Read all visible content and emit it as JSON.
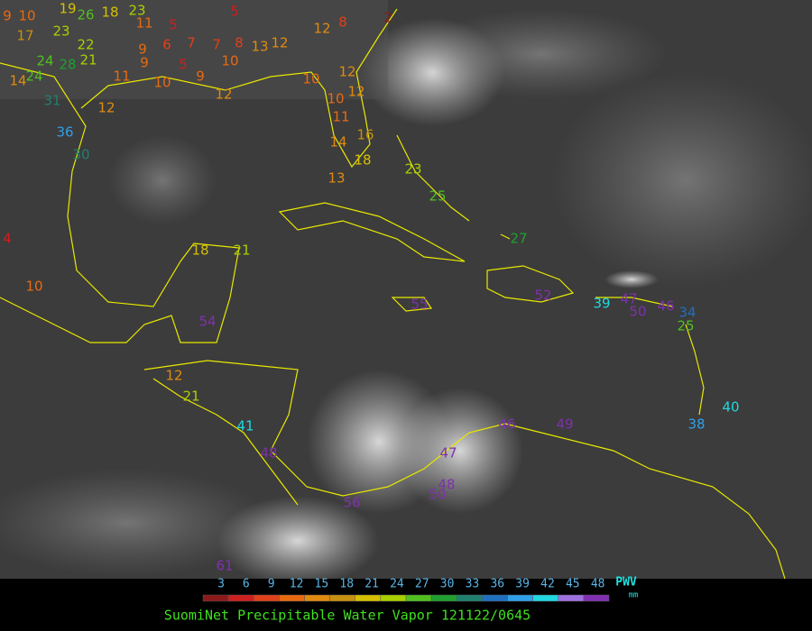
{
  "map": {
    "station_values": [
      9,
      10,
      19,
      26,
      18,
      23,
      5,
      5,
      17,
      23,
      11,
      9,
      6,
      7,
      7,
      8,
      13,
      12,
      12,
      8,
      2,
      22,
      24,
      21,
      28,
      9,
      5,
      9,
      10,
      11,
      10,
      12,
      14,
      24,
      31,
      12,
      36,
      30,
      12,
      10,
      10,
      12,
      11,
      14,
      16,
      18,
      13,
      4,
      10,
      18,
      21,
      23,
      25,
      27,
      55,
      52,
      39,
      47,
      50,
      46,
      34,
      25,
      54,
      12,
      21,
      41,
      48,
      56,
      47,
      48,
      50,
      46,
      49,
      38,
      40,
      61
    ],
    "legend": {
      "ticks": [
        3,
        6,
        9,
        12,
        15,
        18,
        21,
        24,
        27,
        30,
        33,
        36,
        39,
        42,
        45,
        48
      ],
      "colors": [
        "#8b1a1a",
        "#cc1f1f",
        "#e0401a",
        "#e86a10",
        "#e08a10",
        "#c89010",
        "#d4c000",
        "#a8d000",
        "#50c020",
        "#20a030",
        "#208070",
        "#2070c0",
        "#30a0e8",
        "#20d8e0",
        "#a070e0",
        "#8030b0"
      ],
      "unit": "PWV",
      "unit_sub": "mm"
    },
    "caption": "SuomiNet Precipitable Water Vapor 121122/0645"
  }
}
